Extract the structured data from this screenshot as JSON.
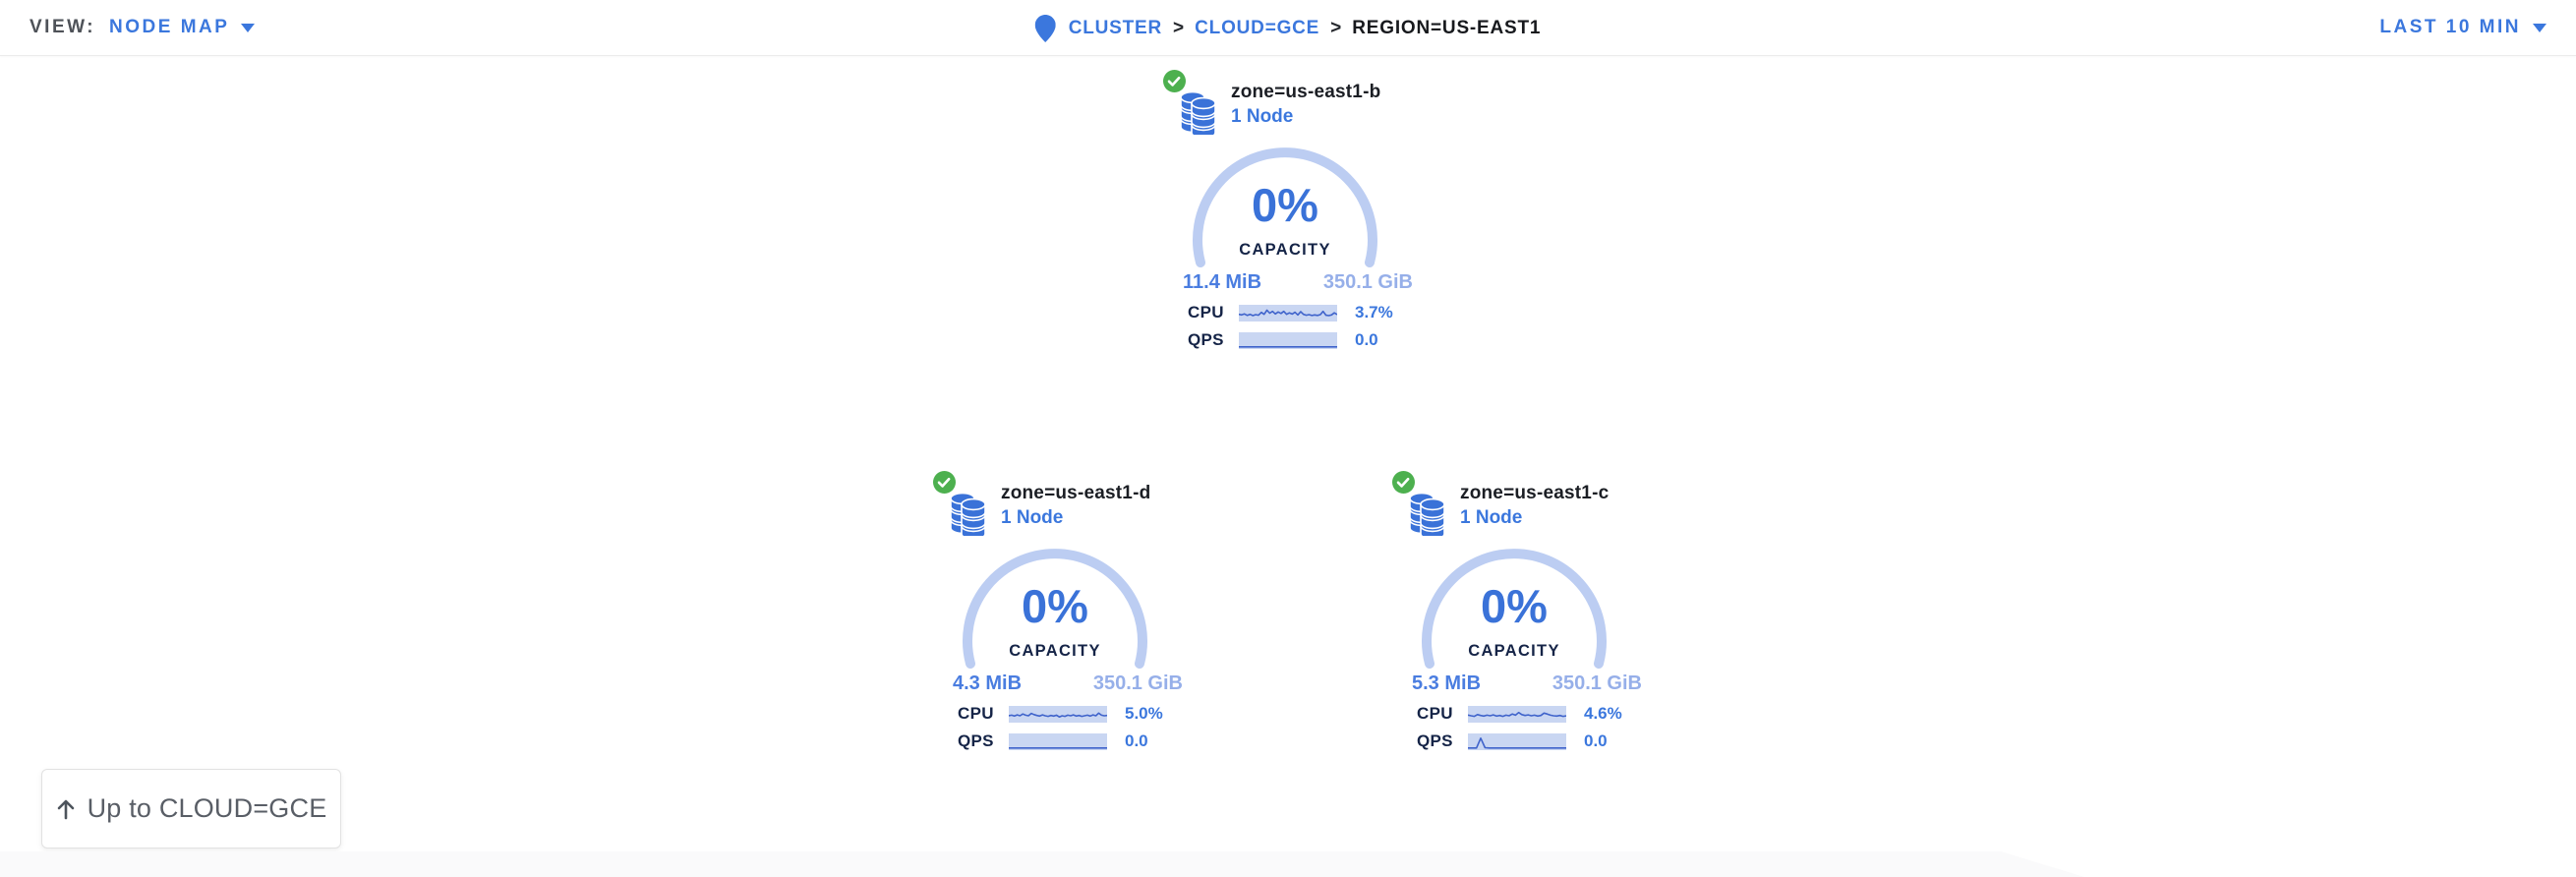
{
  "topbar": {
    "view_label": "VIEW:",
    "view_value": "NODE MAP",
    "time_range": "LAST 10 MIN",
    "separator": ">",
    "breadcrumb": [
      {
        "label": "CLUSTER",
        "type": "link"
      },
      {
        "label": "CLOUD=GCE",
        "type": "link"
      },
      {
        "label": "REGION=US-EAST1",
        "type": "current"
      }
    ]
  },
  "zones": [
    {
      "name": "zone=us-east1-b",
      "nodes": "1 Node",
      "status": "healthy",
      "capacity_pct": "0%",
      "capacity_label": "CAPACITY",
      "used": "11.4 MiB",
      "total": "350.1 GiB",
      "cpu_label": "CPU",
      "cpu_value": "3.7%",
      "qps_label": "QPS",
      "qps_value": "0.0",
      "cpu_spark": [
        0.42,
        0.38,
        0.45,
        0.35,
        0.42,
        0.33,
        0.4,
        0.36,
        0.55,
        0.42,
        0.7,
        0.5,
        0.62,
        0.45,
        0.58,
        0.48,
        0.62,
        0.42,
        0.52,
        0.44,
        0.56,
        0.38,
        0.6,
        0.42,
        0.36,
        0.4,
        0.34,
        0.38,
        0.35,
        0.4,
        0.62,
        0.36,
        0.33,
        0.38,
        0.52,
        0.4
      ],
      "qps_spark": [
        0.08,
        0.08,
        0.08,
        0.08,
        0.08,
        0.08,
        0.08,
        0.08,
        0.08,
        0.08,
        0.08,
        0.08
      ]
    },
    {
      "name": "zone=us-east1-d",
      "nodes": "1 Node",
      "status": "healthy",
      "capacity_pct": "0%",
      "capacity_label": "CAPACITY",
      "used": "4.3 MiB",
      "total": "350.1 GiB",
      "cpu_label": "CPU",
      "cpu_value": "5.0%",
      "qps_label": "QPS",
      "qps_value": "0.0",
      "cpu_spark": [
        0.4,
        0.44,
        0.38,
        0.46,
        0.4,
        0.52,
        0.44,
        0.4,
        0.56,
        0.48,
        0.42,
        0.38,
        0.46,
        0.4,
        0.36,
        0.42,
        0.38,
        0.44,
        0.32,
        0.4,
        0.36,
        0.44,
        0.4,
        0.46,
        0.38,
        0.42,
        0.36,
        0.4,
        0.44,
        0.38,
        0.46,
        0.4,
        0.58,
        0.44,
        0.4,
        0.42
      ],
      "qps_spark": [
        0.08,
        0.08,
        0.08,
        0.08,
        0.08,
        0.08,
        0.08,
        0.08,
        0.08,
        0.08,
        0.08,
        0.08
      ]
    },
    {
      "name": "zone=us-east1-c",
      "nodes": "1 Node",
      "status": "healthy",
      "capacity_pct": "0%",
      "capacity_label": "CAPACITY",
      "used": "5.3 MiB",
      "total": "350.1 GiB",
      "cpu_label": "CPU",
      "cpu_value": "4.6%",
      "qps_label": "QPS",
      "qps_value": "0.0",
      "cpu_spark": [
        0.45,
        0.4,
        0.36,
        0.48,
        0.42,
        0.38,
        0.44,
        0.4,
        0.46,
        0.38,
        0.42,
        0.36,
        0.44,
        0.4,
        0.52,
        0.44,
        0.62,
        0.48,
        0.42,
        0.46,
        0.4,
        0.44,
        0.38,
        0.42,
        0.58,
        0.52,
        0.44,
        0.4,
        0.38,
        0.42,
        0.36,
        0.4
      ],
      "qps_spark": [
        0.08,
        0.08,
        0.08,
        0.75,
        0.1,
        0.08,
        0.08,
        0.08,
        0.08,
        0.08,
        0.08,
        0.08,
        0.08,
        0.08,
        0.08,
        0.08,
        0.08,
        0.08,
        0.08,
        0.08,
        0.08,
        0.08,
        0.08,
        0.08
      ]
    }
  ],
  "up_button": {
    "label": "Up to CLOUD=GCE"
  },
  "colors": {
    "accent_blue": "#3b77dd",
    "pct_blue": "#3a72d8",
    "arc_blue": "#bccdf2",
    "spark_bg": "#c9d6f2",
    "spark_line": "#3f63cb",
    "dark_text": "#152447",
    "used_blue": "#4a7de0",
    "total_blue": "#96afe9",
    "healthy_green": "#4db04f"
  }
}
